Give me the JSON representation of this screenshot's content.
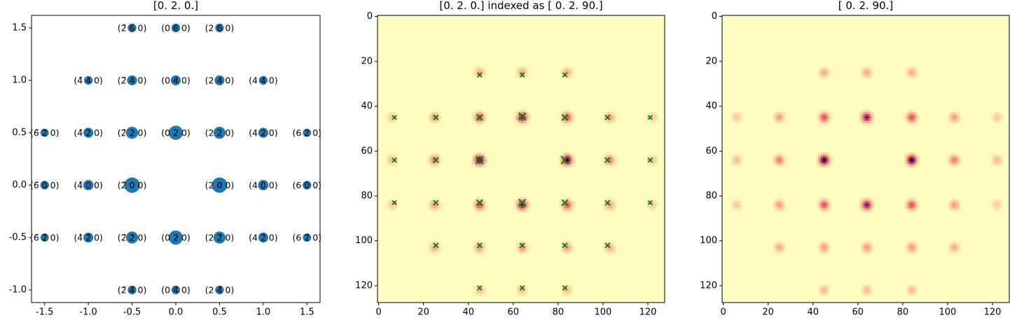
{
  "colors": {
    "marker": "#1f77b4",
    "cross": "#008000",
    "heat_low": "#fcfdbf",
    "heat_high": "#000004"
  },
  "chart_data": [
    {
      "type": "scatter",
      "title": "[0. 2. 0.]",
      "xlim": [
        -1.65,
        1.65
      ],
      "ylim": [
        -1.12,
        1.62
      ],
      "xticks": [
        "-1.5",
        "-1.0",
        "-0.5",
        "0.0",
        "0.5",
        "1.0",
        "1.5"
      ],
      "xtick_values": [
        -1.5,
        -1.0,
        -0.5,
        0.0,
        0.5,
        1.0,
        1.5
      ],
      "yticks": [
        "1.5",
        "1.0",
        "0.5",
        "0.0",
        "-0.5",
        "-1.0"
      ],
      "ytick_values": [
        1.5,
        1.0,
        0.5,
        0.0,
        -0.5,
        -1.0
      ],
      "points": [
        {
          "x": -0.5,
          "y": 1.5,
          "label": "(2̄ 6 0)",
          "weight": 0.2
        },
        {
          "x": 0.0,
          "y": 1.5,
          "label": "(0 6 0)",
          "weight": 0.2
        },
        {
          "x": 0.5,
          "y": 1.5,
          "label": "(2 6 0)",
          "weight": 0.2
        },
        {
          "x": -1.0,
          "y": 1.0,
          "label": "(4̄ 4 0)",
          "weight": 0.2
        },
        {
          "x": -0.5,
          "y": 1.0,
          "label": "(2̄ 4 0)",
          "weight": 0.35
        },
        {
          "x": 0.0,
          "y": 1.0,
          "label": "(0 4 0)",
          "weight": 0.35
        },
        {
          "x": 0.5,
          "y": 1.0,
          "label": "(2 4 0)",
          "weight": 0.35
        },
        {
          "x": 1.0,
          "y": 1.0,
          "label": "(4 4 0)",
          "weight": 0.2
        },
        {
          "x": -1.5,
          "y": 0.5,
          "label": "(6̄ 2 0)",
          "weight": 0.15
        },
        {
          "x": -1.0,
          "y": 0.5,
          "label": "(4̄ 2 0)",
          "weight": 0.35
        },
        {
          "x": -0.5,
          "y": 0.5,
          "label": "(2̄ 2 0)",
          "weight": 0.6
        },
        {
          "x": 0.0,
          "y": 0.5,
          "label": "(0 2 0)",
          "weight": 0.85
        },
        {
          "x": 0.5,
          "y": 0.5,
          "label": "(2 2 0)",
          "weight": 0.6
        },
        {
          "x": 1.0,
          "y": 0.5,
          "label": "(4 2 0)",
          "weight": 0.35
        },
        {
          "x": 1.5,
          "y": 0.5,
          "label": "(6 2 0)",
          "weight": 0.15
        },
        {
          "x": -1.5,
          "y": 0.0,
          "label": "(6̄ 0 0)",
          "weight": 0.2
        },
        {
          "x": -1.0,
          "y": 0.0,
          "label": "(4̄ 0 0)",
          "weight": 0.4
        },
        {
          "x": -0.5,
          "y": 0.0,
          "label": "(2̄ 0 0)",
          "weight": 1.0
        },
        {
          "x": 0.5,
          "y": 0.0,
          "label": "(2 0 0)",
          "weight": 1.0
        },
        {
          "x": 1.0,
          "y": 0.0,
          "label": "(4 0 0)",
          "weight": 0.4
        },
        {
          "x": 1.5,
          "y": 0.0,
          "label": "(6 0 0)",
          "weight": 0.2
        },
        {
          "x": -1.5,
          "y": -0.5,
          "label": "(6̄ 2̄ 0)",
          "weight": 0.15
        },
        {
          "x": -1.0,
          "y": -0.5,
          "label": "(4̄ 2̄ 0)",
          "weight": 0.35
        },
        {
          "x": -0.5,
          "y": -0.5,
          "label": "(2̄ 2̄ 0)",
          "weight": 0.6
        },
        {
          "x": 0.0,
          "y": -0.5,
          "label": "(0 2̄ 0)",
          "weight": 0.85
        },
        {
          "x": 0.5,
          "y": -0.5,
          "label": "(2 2̄ 0)",
          "weight": 0.6
        },
        {
          "x": 1.0,
          "y": -0.5,
          "label": "(4 2̄ 0)",
          "weight": 0.35
        },
        {
          "x": 1.5,
          "y": -0.5,
          "label": "(6 2̄ 0)",
          "weight": 0.15
        },
        {
          "x": -0.5,
          "y": -1.0,
          "label": "(2̄ 4̄ 0)",
          "weight": 0.2
        },
        {
          "x": 0.0,
          "y": -1.0,
          "label": "(0 4̄ 0)",
          "weight": 0.2
        },
        {
          "x": 0.5,
          "y": -1.0,
          "label": "(2 4̄ 0)",
          "weight": 0.2
        }
      ]
    },
    {
      "type": "heatmap",
      "title": "[0. 2. 0.] indexed as [ 0.  2. 90.]",
      "xlim": [
        -0.5,
        127.5
      ],
      "ylim": [
        127.5,
        -0.5
      ],
      "xticks": [
        "0",
        "20",
        "40",
        "60",
        "80",
        "100",
        "120"
      ],
      "tick_values": [
        0,
        20,
        40,
        60,
        80,
        100,
        120
      ],
      "yticks": [
        "0",
        "20",
        "40",
        "60",
        "80",
        "100",
        "120"
      ],
      "spots": [
        {
          "x": 44.5,
          "y": 25,
          "v": 0.3
        },
        {
          "x": 64,
          "y": 25,
          "v": 0.3
        },
        {
          "x": 83.5,
          "y": 25,
          "v": 0.3
        },
        {
          "x": 6,
          "y": 44.5,
          "v": 0.2
        },
        {
          "x": 25,
          "y": 44.5,
          "v": 0.35
        },
        {
          "x": 44.5,
          "y": 44.5,
          "v": 0.6
        },
        {
          "x": 64,
          "y": 44.5,
          "v": 0.85
        },
        {
          "x": 83.5,
          "y": 44.5,
          "v": 0.6
        },
        {
          "x": 102.5,
          "y": 44.5,
          "v": 0.35
        },
        {
          "x": 121.5,
          "y": 44.5,
          "v": 0.2
        },
        {
          "x": 6,
          "y": 64,
          "v": 0.25
        },
        {
          "x": 25,
          "y": 64,
          "v": 0.45
        },
        {
          "x": 44.5,
          "y": 64,
          "v": 1.0
        },
        {
          "x": 83.5,
          "y": 64,
          "v": 1.0
        },
        {
          "x": 102.5,
          "y": 64,
          "v": 0.45
        },
        {
          "x": 121.5,
          "y": 64,
          "v": 0.25
        },
        {
          "x": 6,
          "y": 83.5,
          "v": 0.2
        },
        {
          "x": 25,
          "y": 83.5,
          "v": 0.35
        },
        {
          "x": 44.5,
          "y": 83.5,
          "v": 0.6
        },
        {
          "x": 64,
          "y": 83.5,
          "v": 0.85
        },
        {
          "x": 83.5,
          "y": 83.5,
          "v": 0.6
        },
        {
          "x": 102.5,
          "y": 83.5,
          "v": 0.35
        },
        {
          "x": 121.5,
          "y": 83.5,
          "v": 0.2
        },
        {
          "x": 25,
          "y": 102.5,
          "v": 0.3
        },
        {
          "x": 44.5,
          "y": 102.5,
          "v": 0.35
        },
        {
          "x": 64,
          "y": 102.5,
          "v": 0.35
        },
        {
          "x": 83.5,
          "y": 102.5,
          "v": 0.35
        },
        {
          "x": 102.5,
          "y": 102.5,
          "v": 0.3
        },
        {
          "x": 44.5,
          "y": 121.5,
          "v": 0.25
        },
        {
          "x": 64,
          "y": 121.5,
          "v": 0.25
        },
        {
          "x": 83.5,
          "y": 121.5,
          "v": 0.25
        }
      ],
      "markers": [
        {
          "x": 45,
          "y": 26,
          "s": 0.2
        },
        {
          "x": 64,
          "y": 26,
          "s": 0.2
        },
        {
          "x": 83,
          "y": 26,
          "s": 0.2
        },
        {
          "x": 7,
          "y": 45,
          "s": 0.15
        },
        {
          "x": 25.5,
          "y": 45,
          "s": 0.3
        },
        {
          "x": 45,
          "y": 45,
          "s": 0.6
        },
        {
          "x": 64,
          "y": 44.5,
          "s": 0.85
        },
        {
          "x": 83,
          "y": 45,
          "s": 0.6
        },
        {
          "x": 102,
          "y": 45,
          "s": 0.3
        },
        {
          "x": 121,
          "y": 45,
          "s": 0.15
        },
        {
          "x": 7,
          "y": 64,
          "s": 0.2
        },
        {
          "x": 25.5,
          "y": 64,
          "s": 0.4
        },
        {
          "x": 45,
          "y": 64,
          "s": 1.0
        },
        {
          "x": 83,
          "y": 64,
          "s": 1.0
        },
        {
          "x": 102,
          "y": 64,
          "s": 0.4
        },
        {
          "x": 121,
          "y": 64,
          "s": 0.2
        },
        {
          "x": 7,
          "y": 83,
          "s": 0.15
        },
        {
          "x": 25.5,
          "y": 83,
          "s": 0.3
        },
        {
          "x": 45,
          "y": 83,
          "s": 0.6
        },
        {
          "x": 64,
          "y": 83,
          "s": 0.85
        },
        {
          "x": 83,
          "y": 83,
          "s": 0.6
        },
        {
          "x": 102,
          "y": 83,
          "s": 0.3
        },
        {
          "x": 121,
          "y": 83,
          "s": 0.15
        },
        {
          "x": 25.5,
          "y": 102,
          "s": 0.3
        },
        {
          "x": 45,
          "y": 102,
          "s": 0.3
        },
        {
          "x": 64,
          "y": 102,
          "s": 0.3
        },
        {
          "x": 83,
          "y": 102,
          "s": 0.3
        },
        {
          "x": 102,
          "y": 102,
          "s": 0.3
        },
        {
          "x": 45,
          "y": 121,
          "s": 0.2
        },
        {
          "x": 64,
          "y": 121,
          "s": 0.2
        },
        {
          "x": 83,
          "y": 121,
          "s": 0.2
        }
      ]
    },
    {
      "type": "heatmap",
      "title": "[ 0.  2. 90.]",
      "xlim": [
        -0.5,
        127.5
      ],
      "ylim": [
        127.5,
        -0.5
      ],
      "xticks": [
        "0",
        "20",
        "40",
        "60",
        "80",
        "100",
        "120"
      ],
      "tick_values": [
        0,
        20,
        40,
        60,
        80,
        100,
        120
      ],
      "yticks": [
        "0",
        "20",
        "40",
        "60",
        "80",
        "100",
        "120"
      ],
      "spots": [
        {
          "x": 44.5,
          "y": 25,
          "v": 0.3
        },
        {
          "x": 64,
          "y": 25,
          "v": 0.3
        },
        {
          "x": 83.5,
          "y": 25,
          "v": 0.3
        },
        {
          "x": 6,
          "y": 44.5,
          "v": 0.2
        },
        {
          "x": 25,
          "y": 44.5,
          "v": 0.35
        },
        {
          "x": 44.5,
          "y": 44.5,
          "v": 0.6
        },
        {
          "x": 64,
          "y": 44.5,
          "v": 0.85
        },
        {
          "x": 83.5,
          "y": 44.5,
          "v": 0.6
        },
        {
          "x": 102.5,
          "y": 44.5,
          "v": 0.35
        },
        {
          "x": 121.5,
          "y": 44.5,
          "v": 0.2
        },
        {
          "x": 6,
          "y": 64,
          "v": 0.25
        },
        {
          "x": 25,
          "y": 64,
          "v": 0.45
        },
        {
          "x": 44.5,
          "y": 64,
          "v": 1.0
        },
        {
          "x": 83.5,
          "y": 64,
          "v": 1.0
        },
        {
          "x": 102.5,
          "y": 64,
          "v": 0.45
        },
        {
          "x": 121.5,
          "y": 64,
          "v": 0.25
        },
        {
          "x": 6,
          "y": 83.5,
          "v": 0.2
        },
        {
          "x": 25,
          "y": 83.5,
          "v": 0.35
        },
        {
          "x": 44.5,
          "y": 83.5,
          "v": 0.6
        },
        {
          "x": 64,
          "y": 83.5,
          "v": 0.85
        },
        {
          "x": 83.5,
          "y": 83.5,
          "v": 0.6
        },
        {
          "x": 102.5,
          "y": 83.5,
          "v": 0.35
        },
        {
          "x": 121.5,
          "y": 83.5,
          "v": 0.2
        },
        {
          "x": 25,
          "y": 102.5,
          "v": 0.3
        },
        {
          "x": 44.5,
          "y": 102.5,
          "v": 0.35
        },
        {
          "x": 64,
          "y": 102.5,
          "v": 0.35
        },
        {
          "x": 83.5,
          "y": 102.5,
          "v": 0.35
        },
        {
          "x": 102.5,
          "y": 102.5,
          "v": 0.3
        },
        {
          "x": 44.5,
          "y": 121.5,
          "v": 0.25
        },
        {
          "x": 64,
          "y": 121.5,
          "v": 0.25
        },
        {
          "x": 83.5,
          "y": 121.5,
          "v": 0.25
        }
      ],
      "markers": []
    }
  ]
}
